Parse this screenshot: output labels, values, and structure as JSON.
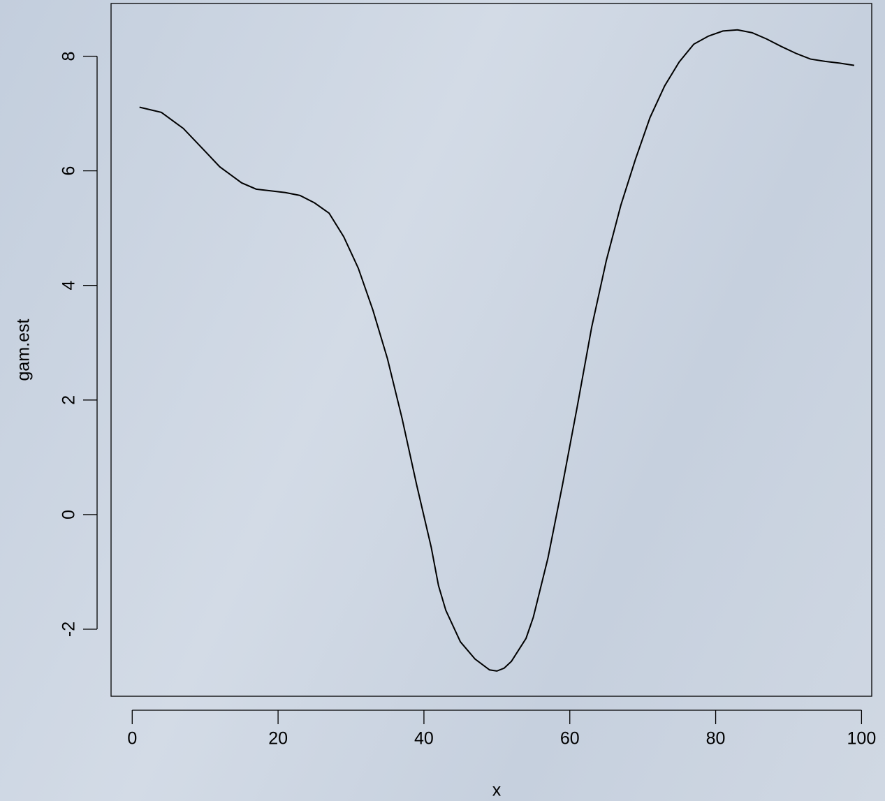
{
  "chart_data": {
    "type": "line",
    "xlabel": "x",
    "ylabel": "gam.est",
    "x": [
      1,
      4,
      7,
      10,
      12,
      15,
      17,
      21,
      23,
      25,
      27,
      29,
      31,
      33,
      35,
      37,
      39,
      41,
      42,
      43,
      45,
      47,
      49,
      50,
      51,
      52,
      54,
      55,
      57,
      59,
      61,
      63,
      65,
      67,
      69,
      71,
      73,
      75,
      77,
      79,
      81,
      83,
      85,
      87,
      89,
      91,
      93,
      95,
      97,
      99
    ],
    "values": [
      7.11,
      7.02,
      6.74,
      6.34,
      6.07,
      5.79,
      5.68,
      5.62,
      5.57,
      5.44,
      5.26,
      4.85,
      4.3,
      3.57,
      2.72,
      1.68,
      0.52,
      -0.57,
      -1.24,
      -1.67,
      -2.22,
      -2.52,
      -2.71,
      -2.73,
      -2.68,
      -2.56,
      -2.16,
      -1.79,
      -0.76,
      0.52,
      1.87,
      3.27,
      4.43,
      5.4,
      6.2,
      6.93,
      7.48,
      7.9,
      8.21,
      8.35,
      8.44,
      8.46,
      8.41,
      8.3,
      8.17,
      8.05,
      7.95,
      7.91,
      7.88,
      7.84
    ],
    "color": "#000000",
    "xlim": [
      -2.9,
      101.4
    ],
    "ylim": [
      -3.17,
      8.92
    ],
    "xticks": [
      0,
      20,
      40,
      60,
      80,
      100
    ],
    "yticks": [
      -2,
      0,
      2,
      4,
      6,
      8
    ]
  }
}
